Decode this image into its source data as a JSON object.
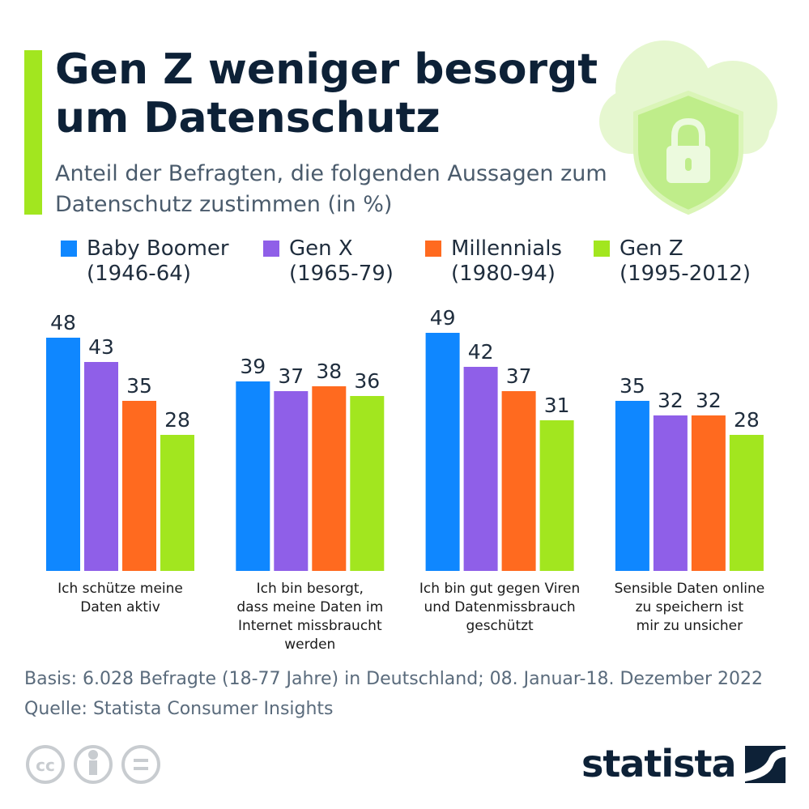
{
  "chart_data": {
    "type": "bar",
    "title": "Gen Z weniger besorgt um Datenschutz",
    "subtitle": "Anteil der Befragten, die folgenden Aussagen zum Datenschutz zustimmen (in %)",
    "categories": [
      "Ich schütze meine\nDaten aktiv",
      "Ich bin besorgt,\ndass meine Daten im\nInternet missbraucht\nwerden",
      "Ich bin gut gegen Viren\nund Datenmissbrauch\ngeschützt",
      "Sensible Daten online\nzu speichern ist\nmir zu unsicher"
    ],
    "series": [
      {
        "name": "Baby Boomer\n(1946-64)",
        "color": "#0f87ff",
        "values": [
          48,
          39,
          49,
          35
        ]
      },
      {
        "name": "Gen X\n(1965-79)",
        "color": "#8f5fe8",
        "values": [
          43,
          37,
          42,
          32
        ]
      },
      {
        "name": "Millennials\n(1980-94)",
        "color": "#ff6a1f",
        "values": [
          35,
          38,
          37,
          32
        ]
      },
      {
        "name": "Gen Z\n(1995-2012)",
        "color": "#a2e61f",
        "values": [
          28,
          36,
          31,
          28
        ]
      }
    ],
    "notes": [
      "Basis: 6.028 Befragte (18-77 Jahre) in Deutschland; 08. Januar-18. Dezember 2022",
      "Quelle: Statista Consumer Insights"
    ],
    "logo": "statista"
  }
}
